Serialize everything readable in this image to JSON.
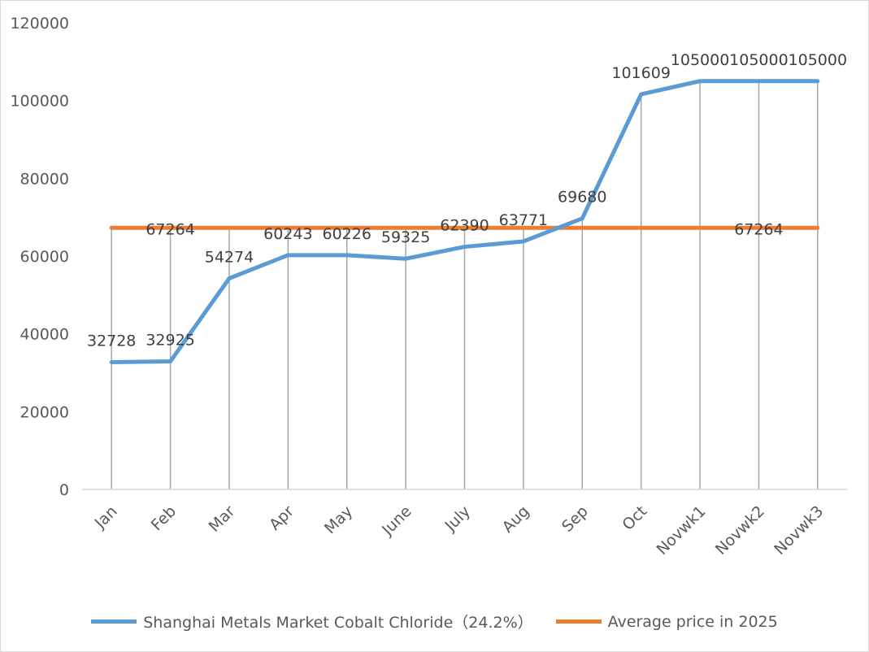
{
  "chart_data": {
    "type": "line",
    "title": "",
    "xlabel": "",
    "ylabel": "",
    "ylim": [
      0,
      120000
    ],
    "yticks": [
      "0",
      "20000",
      "40000",
      "60000",
      "80000",
      "100000",
      "120000"
    ],
    "categories": [
      "Jan",
      "Feb",
      "Mar",
      "Apr",
      "May",
      "June",
      "July",
      "Aug",
      "Sep",
      "Oct",
      "Novwk1",
      "Novwk2",
      "Novwk3"
    ],
    "grid": false,
    "legend_position": "bottom",
    "series": [
      {
        "name": "Shanghai Metals Market Cobalt Chloride（24.2%）",
        "color": "#5B9BD5",
        "values": [
          32728,
          32925,
          54274,
          60243,
          60226,
          59325,
          62390,
          63771,
          69680,
          101609,
          105000,
          105000,
          105000
        ]
      },
      {
        "name": "Average price in 2025",
        "color": "#ED7D31",
        "values": [
          67264,
          67264,
          67264,
          67264,
          67264,
          67264,
          67264,
          67264,
          67264,
          67264,
          67264,
          67264,
          67264
        ],
        "labeled_indices": [
          1,
          11
        ]
      }
    ]
  }
}
